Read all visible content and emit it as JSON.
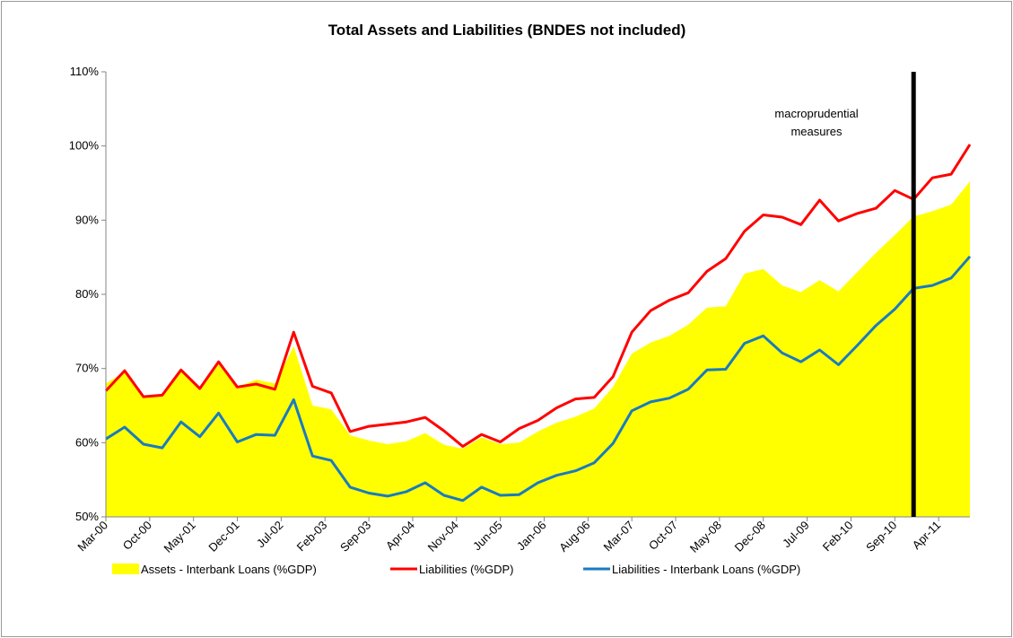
{
  "chart_data": {
    "type": "line",
    "title": "Total Assets and Liabilities (BNDES not included)",
    "x": [
      "Mar-00",
      "Jun-00",
      "Sep-00",
      "Dec-00",
      "Mar-01",
      "Jun-01",
      "Sep-01",
      "Dec-01",
      "Mar-02",
      "Jun-02",
      "Sep-02",
      "Dec-02",
      "Mar-03",
      "Jun-03",
      "Sep-03",
      "Dec-03",
      "Mar-04",
      "Jun-04",
      "Sep-04",
      "Dec-04",
      "Mar-05",
      "Jun-05",
      "Sep-05",
      "Dec-05",
      "Mar-06",
      "Jun-06",
      "Sep-06",
      "Dec-06",
      "Mar-07",
      "Jun-07",
      "Sep-07",
      "Dec-07",
      "Mar-08",
      "Jun-08",
      "Sep-08",
      "Dec-08",
      "Mar-09",
      "Jun-09",
      "Sep-09",
      "Dec-09",
      "Mar-10",
      "Jun-10",
      "Sep-10",
      "Dec-10",
      "Mar-11",
      "Jun-11",
      "Sep-11"
    ],
    "series": [
      {
        "name": "Assets - Interbank Loans (%GDP)",
        "color": "#ffff00",
        "style": "area",
        "values": [
          68,
          69.5,
          66.2,
          66.4,
          69.8,
          67.3,
          70.9,
          67.5,
          68.5,
          68,
          73,
          65,
          64.5,
          61,
          60.3,
          59.8,
          60.2,
          61.3,
          59.7,
          59.2,
          60.7,
          59.8,
          60,
          61.5,
          62.7,
          63.5,
          64.6,
          67.5,
          72,
          73.5,
          74.4,
          75.9,
          78.2,
          78.4,
          82.8,
          83.4,
          81.2,
          80.3,
          81.9,
          80.4,
          83,
          85.6,
          88,
          90.5,
          91.2,
          92.1,
          95.2
        ]
      },
      {
        "name": "Liabilities (%GDP)",
        "color": "#ff0000",
        "style": "line",
        "values": [
          67,
          69.7,
          66.2,
          66.4,
          69.8,
          67.3,
          70.9,
          67.5,
          67.9,
          67.2,
          74.9,
          67.6,
          66.7,
          61.5,
          62.2,
          62.5,
          62.8,
          63.4,
          61.6,
          59.5,
          61.1,
          60.1,
          61.9,
          63,
          64.7,
          65.9,
          66.1,
          68.9,
          74.9,
          77.8,
          79.2,
          80.2,
          83.1,
          84.8,
          88.5,
          90.7,
          90.4,
          89.4,
          92.7,
          89.9,
          90.9,
          91.6,
          94,
          92.8,
          95.7,
          96.2,
          100.2
        ]
      },
      {
        "name": "Liabilities - Interbank Loans (%GDP)",
        "color": "#1a7bbf",
        "style": "line",
        "values": [
          60.5,
          62.1,
          59.8,
          59.3,
          62.8,
          60.8,
          64,
          60.1,
          61.1,
          61,
          65.8,
          58.2,
          57.6,
          54,
          53.2,
          52.8,
          53.4,
          54.6,
          52.9,
          52.2,
          54,
          52.9,
          53,
          54.6,
          55.6,
          56.2,
          57.3,
          59.9,
          64.3,
          65.5,
          66,
          67.2,
          69.8,
          69.9,
          73.4,
          74.4,
          72.1,
          70.9,
          72.5,
          70.5,
          73.1,
          75.8,
          78,
          80.8,
          81.2,
          82.2,
          85.1
        ]
      }
    ],
    "xlim": [
      "Mar-00",
      "Sep-11"
    ],
    "xticks": [
      "Mar-00",
      "Oct-00",
      "May-01",
      "Dec-01",
      "Jul-02",
      "Feb-03",
      "Sep-03",
      "Apr-04",
      "Nov-04",
      "Jun-05",
      "Jan-06",
      "Aug-06",
      "Mar-07",
      "Oct-07",
      "May-08",
      "Dec-08",
      "Jul-09",
      "Feb-10",
      "Sep-10",
      "Apr-11"
    ],
    "ylim": [
      50,
      110
    ],
    "yticks": [
      {
        "value": 50,
        "label": "50%"
      },
      {
        "value": 60,
        "label": "60%"
      },
      {
        "value": 70,
        "label": "70%"
      },
      {
        "value": 80,
        "label": "80%"
      },
      {
        "value": 90,
        "label": "90%"
      },
      {
        "value": 100,
        "label": "100%"
      },
      {
        "value": 110,
        "label": "110%"
      }
    ],
    "grid": false,
    "legend": "bottom",
    "annotation": {
      "x": "Dec-10",
      "text": "macroprudential measures",
      "color": "#000000"
    }
  }
}
